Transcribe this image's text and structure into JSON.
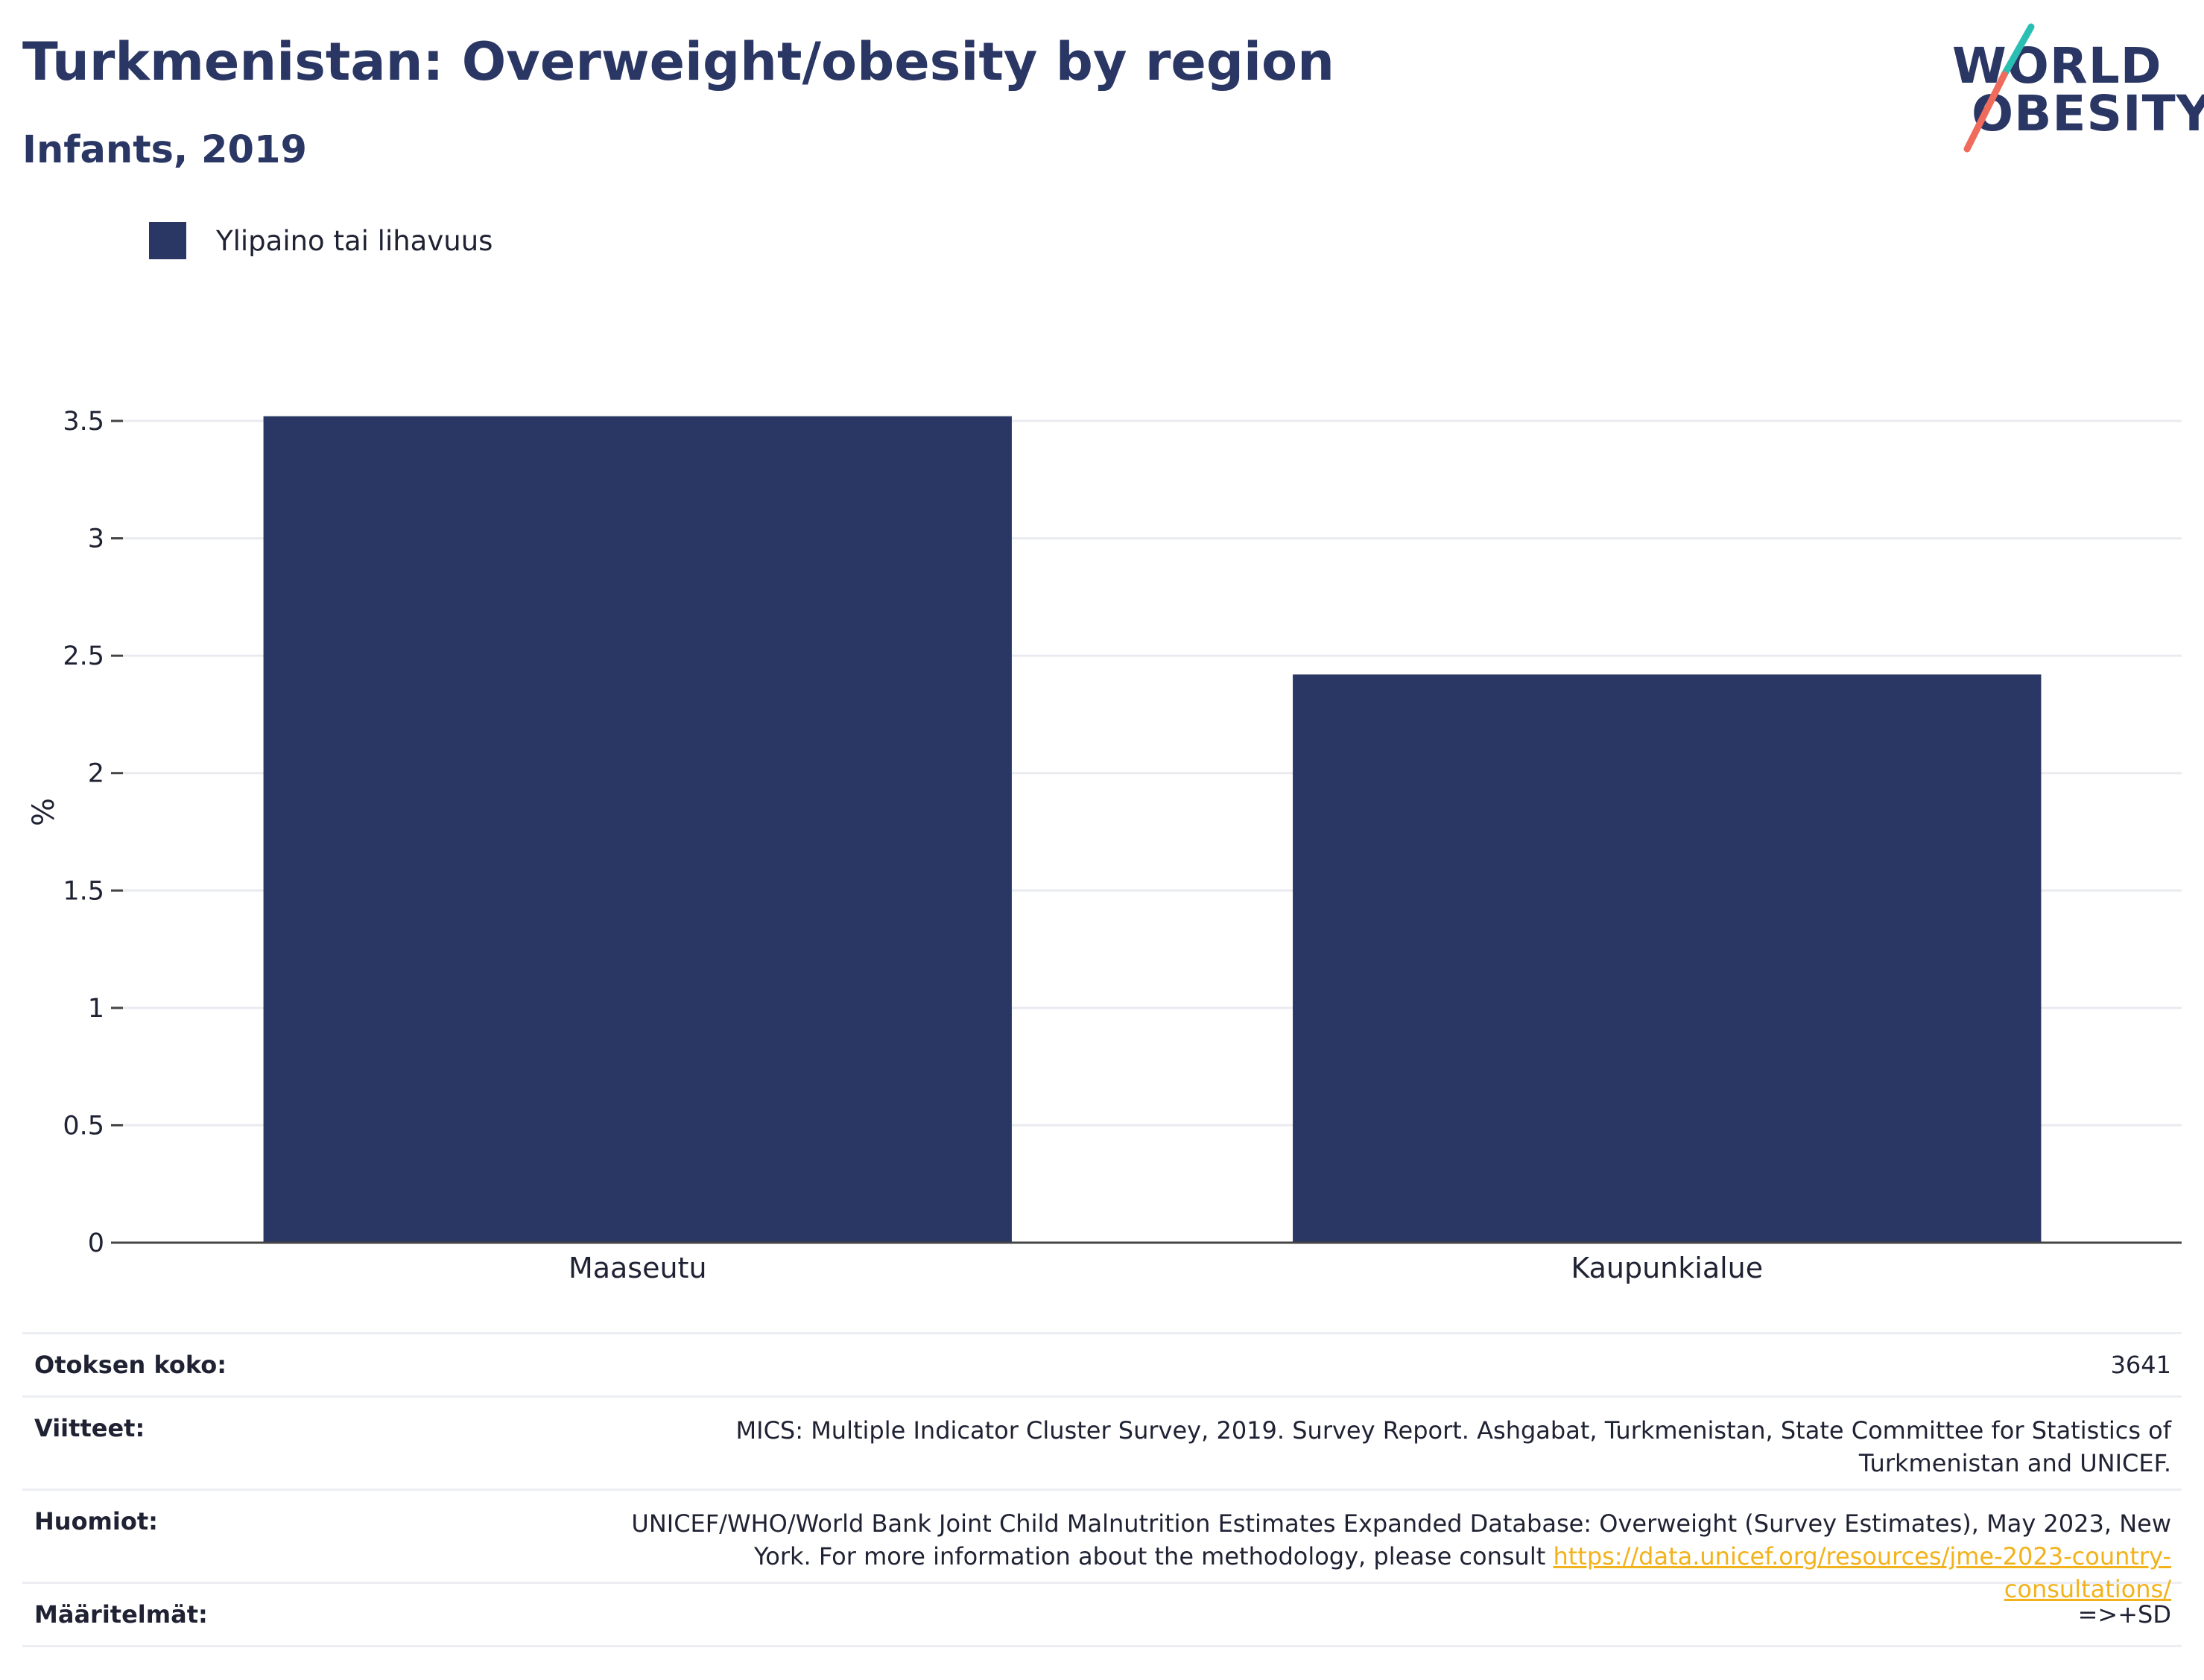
{
  "header": {
    "title": "Turkmenistan: Overweight/obesity by region",
    "subtitle": "Infants, 2019"
  },
  "logo": {
    "line1": "WORLD",
    "line2": "OBESITY",
    "colors": {
      "text": "#2a3663",
      "slash_top": "#2bbfb3",
      "slash_bottom": "#ef6b5b"
    }
  },
  "colors": {
    "bar": "#2a3663",
    "grid": "#e9ebf0",
    "axis": "#444444",
    "link": "#f2b21b"
  },
  "chart_data": {
    "type": "bar",
    "categories": [
      "Maaseutu",
      "Kaupunkialue"
    ],
    "series": [
      {
        "name": "Ylipaino tai lihavuus",
        "values": [
          3.52,
          2.42
        ]
      }
    ],
    "ylabel": "%",
    "xlabel": "",
    "ylim": [
      0,
      3.5
    ],
    "yticks": [
      0,
      0.5,
      1,
      1.5,
      2,
      2.5,
      3,
      3.5
    ],
    "ytick_labels": [
      "0",
      "0.5",
      "1",
      "1.5",
      "2",
      "2.5",
      "3",
      "3.5"
    ],
    "grid": true,
    "legend_position": "top-left"
  },
  "info": {
    "sample_size_label": "Otoksen koko:",
    "sample_size_value": "3641",
    "references_label": "Viitteet:",
    "references_value": "MICS: Multiple Indicator Cluster Survey, 2019. Survey Report. Ashgabat, Turkmenistan, State Committee for Statistics of Turkmenistan and UNICEF.",
    "notes_label": "Huomiot:",
    "notes_text": "UNICEF/WHO/World Bank Joint Child Malnutrition Estimates Expanded Database: Overweight (Survey Estimates), May 2023, New York. For more information about the methodology, please consult",
    "notes_link": "https://data.unicef.org/resources/jme-2023-country-consultations/",
    "definitions_label": "Määritelmät:",
    "definitions_value": "=>+SD"
  }
}
